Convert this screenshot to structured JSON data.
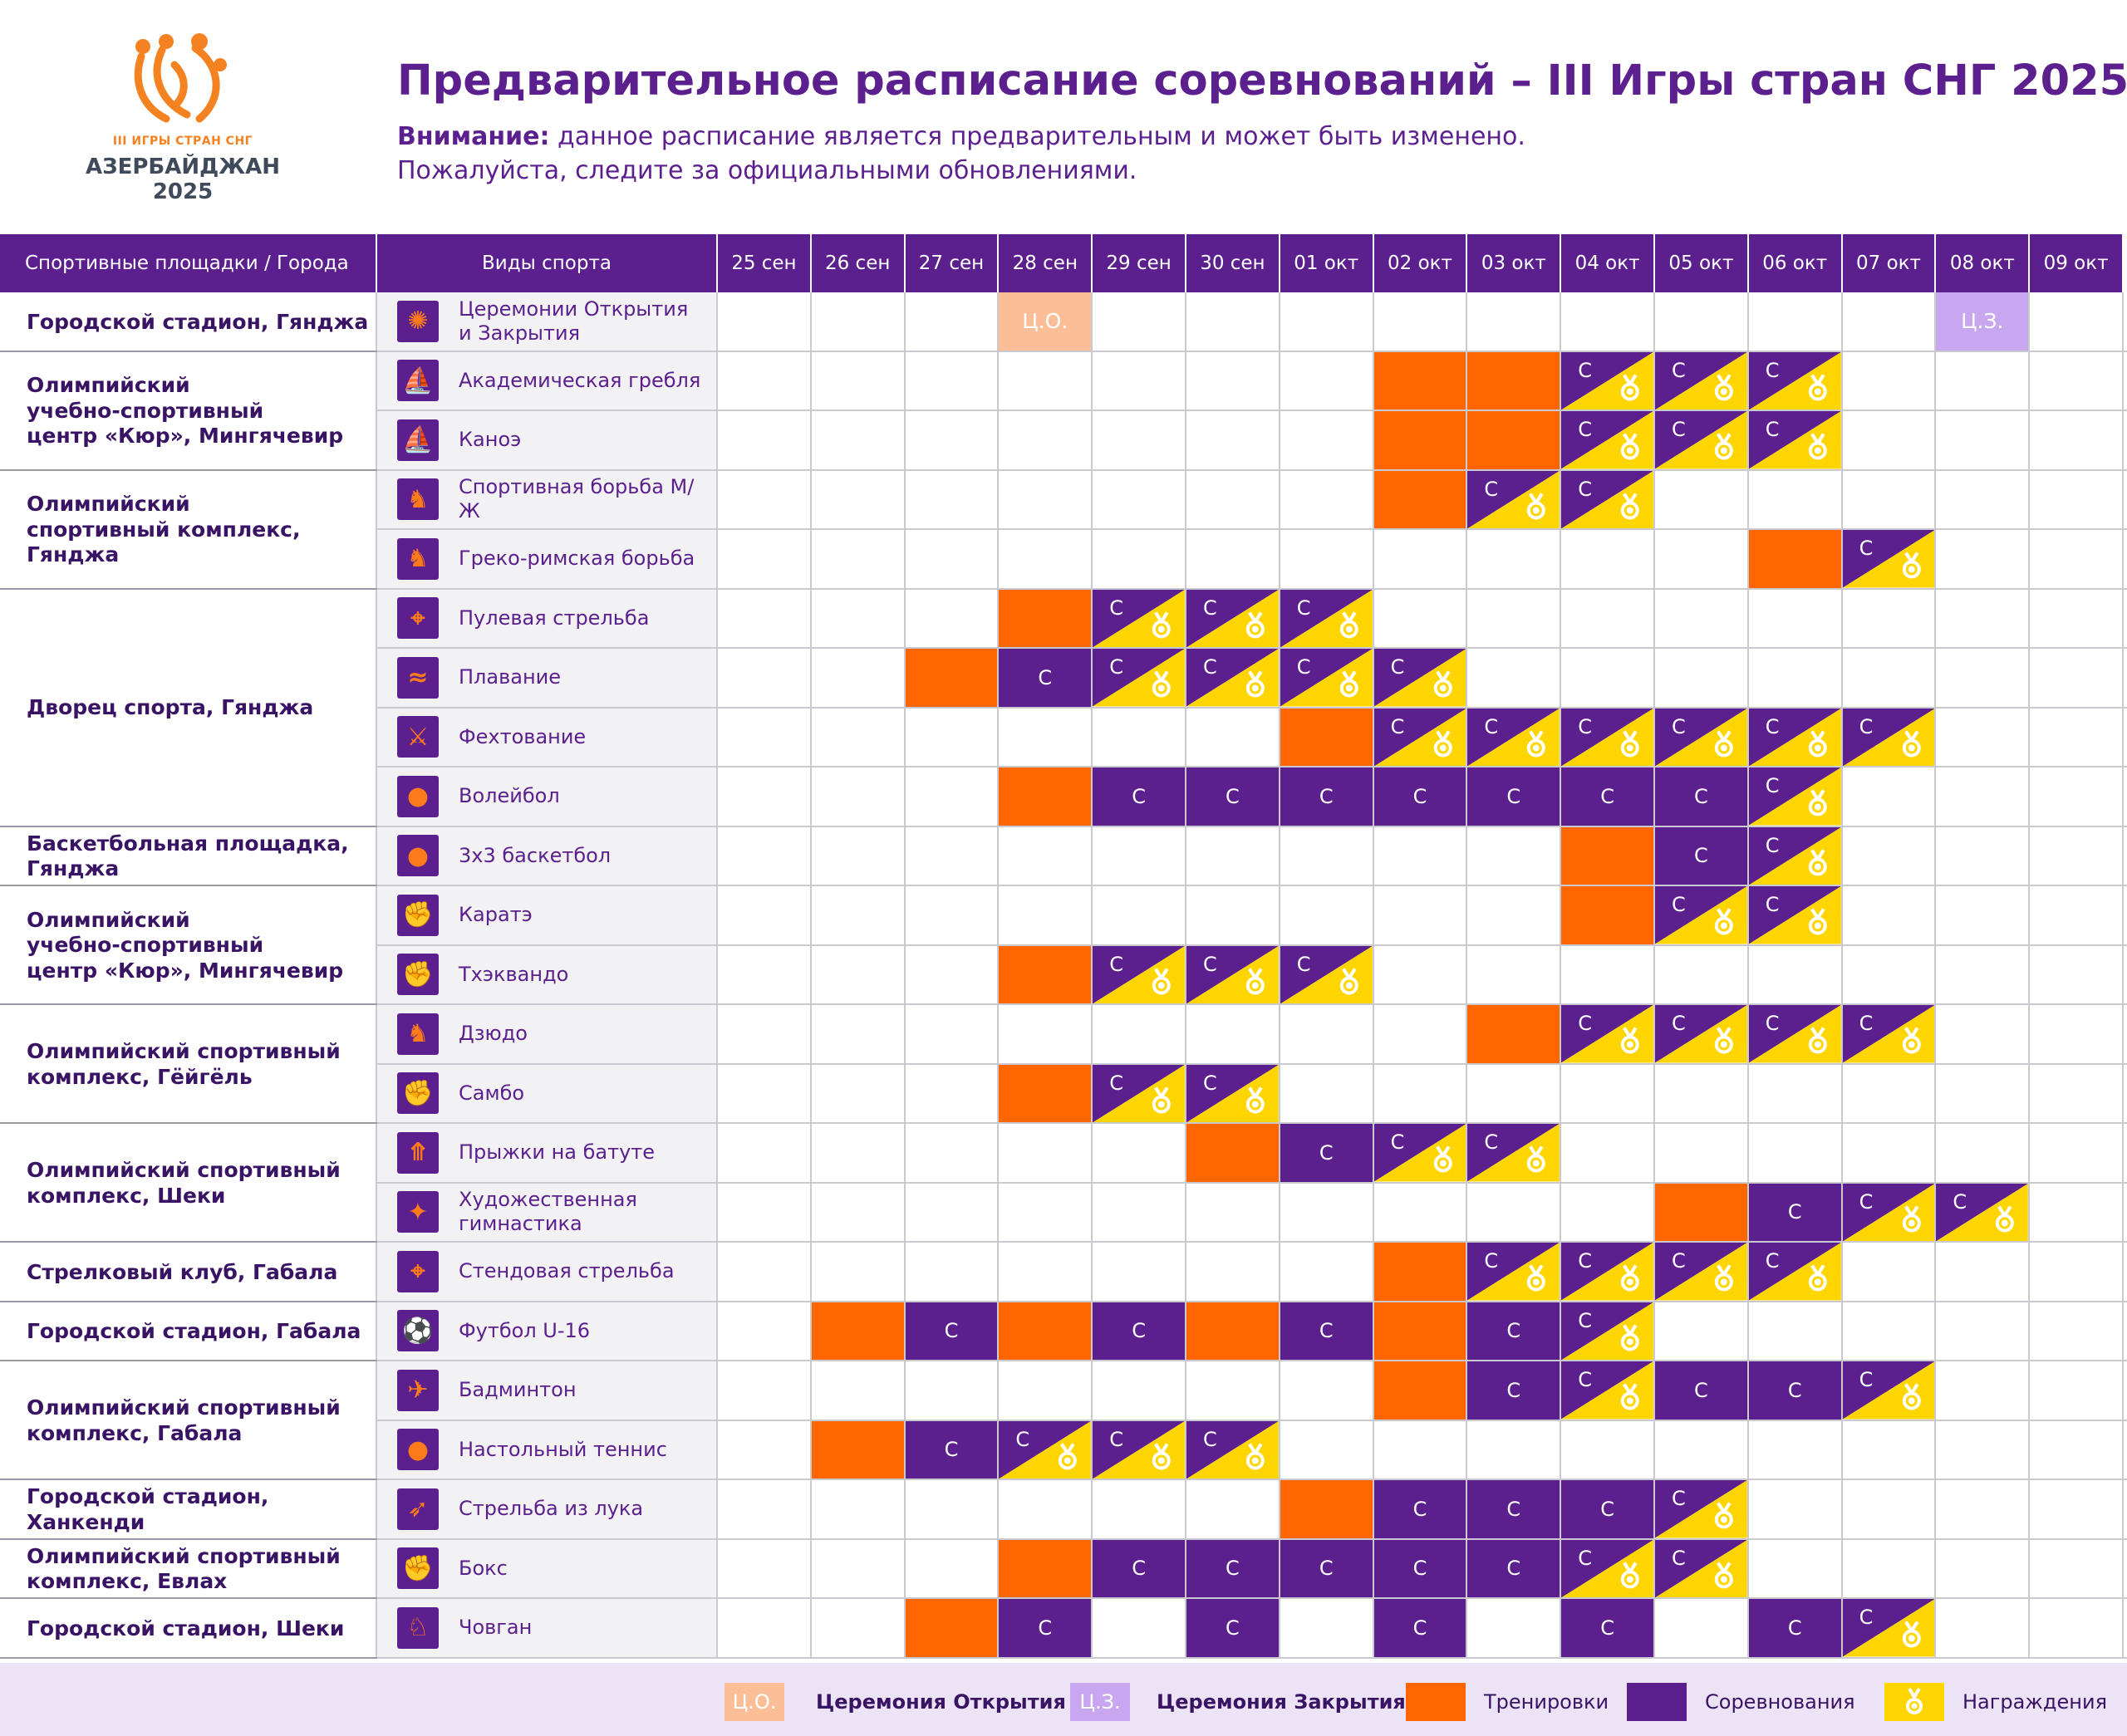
{
  "logo": {
    "line1": "III ИГРЫ СТРАН СНГ",
    "line2": "АЗЕРБАЙДЖАН",
    "line3": "2025"
  },
  "title": "Предварительное расписание соревнований – III Игры стран СНГ 2025",
  "notice": {
    "label": "Внимание:",
    "text": " данное расписание является предварительным и может быть изменено.",
    "line2": "Пожалуйста, следите за официальными обновлениями."
  },
  "table": {
    "header_venue": "Спортивные площадки / Города",
    "header_sport": "Виды спорта",
    "dates": [
      "25 сен",
      "26 сен",
      "27 сен",
      "28 сен",
      "29 сен",
      "30 сен",
      "01 окт",
      "02 окт",
      "03 окт",
      "04 окт",
      "05 окт",
      "06 окт",
      "07 окт",
      "08 окт",
      "09 окт"
    ],
    "venues": [
      {
        "name": "Городской стадион, Гянджа",
        "rows": 1
      },
      {
        "name": "Олимпийский\nучебно-спортивный\nцентр «Кюр», Мингячевир",
        "rows": 2
      },
      {
        "name": "Олимпийский\nспортивный комплекс, Гянджа",
        "rows": 2
      },
      {
        "name": "Дворец спорта, Гянджа",
        "rows": 4
      },
      {
        "name": "Баскетбольная площадка, Гянджа",
        "rows": 1
      },
      {
        "name": "Олимпийский\nучебно-спортивный\nцентр «Кюр», Мингячевир",
        "rows": 2
      },
      {
        "name": "Олимпийский спортивный\nкомплекс, Гёйгёль",
        "rows": 2
      },
      {
        "name": "Олимпийский спортивный\nкомплекс, Шеки",
        "rows": 2
      },
      {
        "name": "Стрелковый клуб, Габала",
        "rows": 1
      },
      {
        "name": "Городской стадион, Габала",
        "rows": 1
      },
      {
        "name": "Олимпийский спортивный\nкомплекс, Габала",
        "rows": 2
      },
      {
        "name": "Городской стадион, Ханкенди",
        "rows": 1
      },
      {
        "name": "Олимпийский спортивный\nкомплекс, Евлах",
        "rows": 1
      },
      {
        "name": "Городской стадион, Шеки",
        "rows": 1
      }
    ],
    "sports": [
      {
        "name": "Церемонии Открытия\nи Закрытия",
        "icon": "ceremony-icon",
        "cells": [
          "",
          "",
          "",
          "CO",
          "",
          "",
          "",
          "",
          "",
          "",
          "",
          "",
          "",
          "CZ",
          ""
        ]
      },
      {
        "name": "Академическая гребля",
        "icon": "rowing-icon",
        "cells": [
          "",
          "",
          "",
          "",
          "",
          "",
          "",
          "T",
          "T",
          "CM",
          "CM",
          "CM",
          "",
          "",
          ""
        ]
      },
      {
        "name": "Каноэ",
        "icon": "canoe-icon",
        "cells": [
          "",
          "",
          "",
          "",
          "",
          "",
          "",
          "T",
          "T",
          "CM",
          "CM",
          "CM",
          "",
          "",
          ""
        ]
      },
      {
        "name": "Спортивная борьба М/Ж",
        "icon": "wrestling-icon",
        "cells": [
          "",
          "",
          "",
          "",
          "",
          "",
          "",
          "T",
          "CM",
          "CM",
          "",
          "",
          "",
          "",
          ""
        ]
      },
      {
        "name": "Греко-римская борьба",
        "icon": "greco-roman-wrestling-icon",
        "cells": [
          "",
          "",
          "",
          "",
          "",
          "",
          "",
          "",
          "",
          "",
          "",
          "T",
          "CM",
          "",
          ""
        ]
      },
      {
        "name": "Пулевая стрельба",
        "icon": "shooting-icon",
        "cells": [
          "",
          "",
          "",
          "T",
          "CM",
          "CM",
          "CM",
          "",
          "",
          "",
          "",
          "",
          "",
          "",
          ""
        ]
      },
      {
        "name": "Плавание",
        "icon": "swimming-icon",
        "cells": [
          "",
          "",
          "T",
          "C",
          "CM",
          "CM",
          "CM",
          "CM",
          "",
          "",
          "",
          "",
          "",
          "",
          ""
        ]
      },
      {
        "name": "Фехтование",
        "icon": "fencing-icon",
        "cells": [
          "",
          "",
          "",
          "",
          "",
          "",
          "T",
          "CM",
          "CM",
          "CM",
          "CM",
          "CM",
          "CM",
          "",
          ""
        ]
      },
      {
        "name": "Волейбол",
        "icon": "volleyball-icon",
        "cells": [
          "",
          "",
          "",
          "T",
          "C",
          "C",
          "C",
          "C",
          "C",
          "C",
          "C",
          "CM",
          "",
          "",
          ""
        ]
      },
      {
        "name": "3x3 баскетбол",
        "icon": "basketball-icon",
        "cells": [
          "",
          "",
          "",
          "",
          "",
          "",
          "",
          "",
          "",
          "T",
          "C",
          "CM",
          "",
          "",
          ""
        ]
      },
      {
        "name": "Каратэ",
        "icon": "karate-icon",
        "cells": [
          "",
          "",
          "",
          "",
          "",
          "",
          "",
          "",
          "",
          "T",
          "CM",
          "CM",
          "",
          "",
          ""
        ]
      },
      {
        "name": "Тхэквандо",
        "icon": "taekwondo-icon",
        "cells": [
          "",
          "",
          "",
          "T",
          "CM",
          "CM",
          "CM",
          "",
          "",
          "",
          "",
          "",
          "",
          "",
          ""
        ]
      },
      {
        "name": "Дзюдо",
        "icon": "judo-icon",
        "cells": [
          "",
          "",
          "",
          "",
          "",
          "",
          "",
          "",
          "T",
          "CM",
          "CM",
          "CM",
          "CM",
          "",
          ""
        ]
      },
      {
        "name": "Самбо",
        "icon": "sambo-icon",
        "cells": [
          "",
          "",
          "",
          "T",
          "CM",
          "CM",
          "",
          "",
          "",
          "",
          "",
          "",
          "",
          "",
          ""
        ]
      },
      {
        "name": "Прыжки на батуте",
        "icon": "trampoline-icon",
        "cells": [
          "",
          "",
          "",
          "",
          "",
          "T",
          "C",
          "CM",
          "CM",
          "",
          "",
          "",
          "",
          "",
          ""
        ]
      },
      {
        "name": "Художественная\nгимнастика",
        "icon": "rhythmic-gymnastics-icon",
        "cells": [
          "",
          "",
          "",
          "",
          "",
          "",
          "",
          "",
          "",
          "",
          "T",
          "C",
          "CM",
          "CM",
          ""
        ]
      },
      {
        "name": "Стендовая стрельба",
        "icon": "clay-shooting-icon",
        "cells": [
          "",
          "",
          "",
          "",
          "",
          "",
          "",
          "T",
          "CM",
          "CM",
          "CM",
          "CM",
          "",
          "",
          ""
        ]
      },
      {
        "name": "Футбол U-16",
        "icon": "football-icon",
        "cells": [
          "",
          "T",
          "C",
          "T",
          "C",
          "T",
          "C",
          "T",
          "C",
          "CM",
          "",
          "",
          "",
          "",
          ""
        ]
      },
      {
        "name": "Бадминтон",
        "icon": "badminton-icon",
        "cells": [
          "",
          "",
          "",
          "",
          "",
          "",
          "",
          "T",
          "C",
          "CM",
          "C",
          "C",
          "CM",
          "",
          ""
        ]
      },
      {
        "name": "Настольный теннис",
        "icon": "table-tennis-icon",
        "cells": [
          "",
          "T",
          "C",
          "CM",
          "CM",
          "CM",
          "",
          "",
          "",
          "",
          "",
          "",
          "",
          "",
          ""
        ]
      },
      {
        "name": "Стрельба из лука",
        "icon": "archery-icon",
        "cells": [
          "",
          "",
          "",
          "",
          "",
          "",
          "T",
          "C",
          "C",
          "C",
          "CM",
          "",
          "",
          "",
          ""
        ]
      },
      {
        "name": "Бокс",
        "icon": "boxing-icon",
        "cells": [
          "",
          "",
          "",
          "T",
          "C",
          "C",
          "C",
          "C",
          "C",
          "CM",
          "CM",
          "",
          "",
          "",
          ""
        ]
      },
      {
        "name": "Човган",
        "icon": "chovgan-icon",
        "cells": [
          "",
          "",
          "T",
          "C",
          "",
          "C",
          "",
          "C",
          "",
          "C",
          "",
          "C",
          "CM",
          "",
          ""
        ]
      }
    ],
    "competition_label": "С",
    "opening_label": "Ц.О.",
    "closing_label": "Ц.З."
  },
  "legend": {
    "opening_box": "Ц.О.",
    "opening_text": "Церемония Открытия",
    "closing_box": "Ц.З.",
    "closing_text": "Церемония Закрытия",
    "training_text": "Тренировки",
    "competition_text": "Соревнования",
    "awards_text": "Награждения"
  },
  "colors": {
    "purple": "#5b1f8e",
    "orange": "#ff6600",
    "yellow": "#ffd500",
    "opening": "#fbbe96",
    "closing": "#c8a6f0",
    "legend_bg": "#ece3f7"
  }
}
